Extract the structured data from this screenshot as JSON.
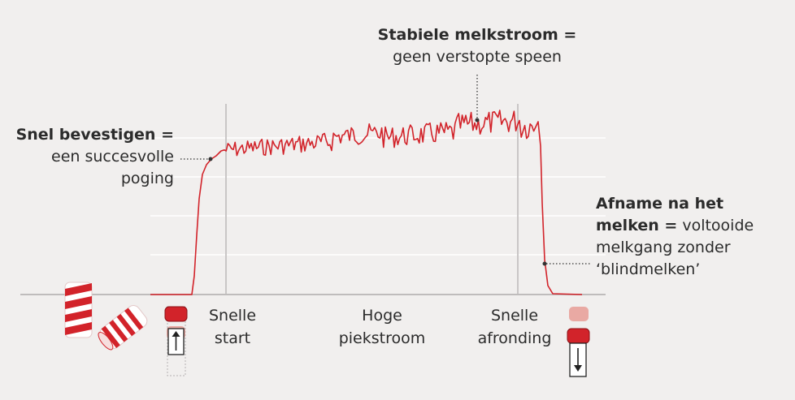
{
  "colors": {
    "background": "#f1efee",
    "curve": "#d2232a",
    "grid": "#ffffff",
    "baseline": "#bfbcbc",
    "marker_line": "#c9c6c6",
    "cup_red": "#d2232a",
    "cup_faded": "#e9a9a3",
    "text": "#2b2b2b"
  },
  "annotations": {
    "stable": {
      "bold": "Stabiele melkstroom =",
      "text": "geen verstopte speen"
    },
    "confirm": {
      "bold": "Snel bevestigen =",
      "line1": "een succesvolle",
      "line2": "poging"
    },
    "decline": {
      "bold1": "Afname na het",
      "bold2": "melken =",
      "text1": " voltooide",
      "text2": "melkgang zonder",
      "text3": "‘blindmelken’"
    }
  },
  "stages": [
    {
      "line1": "Snelle",
      "line2": "start"
    },
    {
      "line1": "Hoge",
      "line2": "piekstroom"
    },
    {
      "line1": "Snelle",
      "line2": "afronding"
    }
  ],
  "icons": {
    "teat_cups": "teat-cup-brushes-icon",
    "attach": "cup-attach-arrow-up-icon",
    "detach": "cup-detach-arrow-down-icon"
  }
}
